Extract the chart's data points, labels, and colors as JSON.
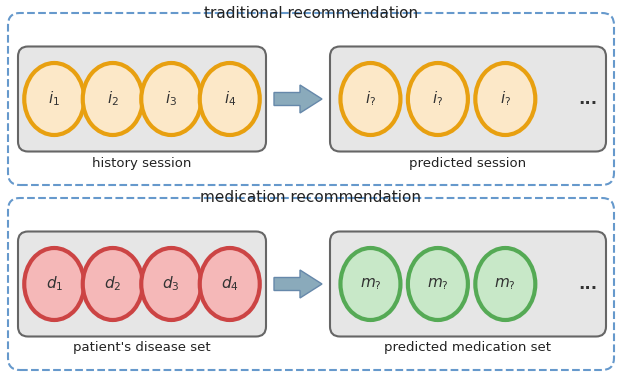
{
  "bg_color": "#ffffff",
  "dashed_border_color": "#6699cc",
  "box_bg_color": "#e8e8e8",
  "box_edge_color": "#666666",
  "arrow_color": "#8aaabb",
  "arrow_edge_color": "#6688aa",
  "top_title": "traditional recommendation",
  "top_left_label": "history session",
  "top_right_label": "predicted session",
  "top_items_left": [
    "i",
    "i",
    "i",
    "i"
  ],
  "top_subs_left": [
    "1",
    "2",
    "3",
    "4"
  ],
  "top_items_right": [
    "i",
    "i",
    "i"
  ],
  "top_subs_right": [
    "?",
    "?",
    "?"
  ],
  "top_circle_fill": "#fce8c8",
  "top_circle_edge": "#e8a010",
  "bot_title": "medication recommendation",
  "bot_left_label": "patient's disease set",
  "bot_right_label": "predicted medication set",
  "bot_items_left": [
    "d",
    "d",
    "d",
    "d"
  ],
  "bot_subs_left": [
    "1",
    "2",
    "3",
    "4"
  ],
  "bot_items_right": [
    "m",
    "m",
    "m"
  ],
  "bot_subs_right": [
    "?",
    "?",
    "?"
  ],
  "bot_circle_fill_left": "#f5b8b8",
  "bot_circle_edge_left": "#cc4444",
  "bot_circle_fill_right": "#c8e8c8",
  "bot_circle_edge_right": "#55aa55",
  "dots_text": "...",
  "title_fontsize": 11,
  "label_fontsize": 9.5,
  "item_fontsize": 10
}
